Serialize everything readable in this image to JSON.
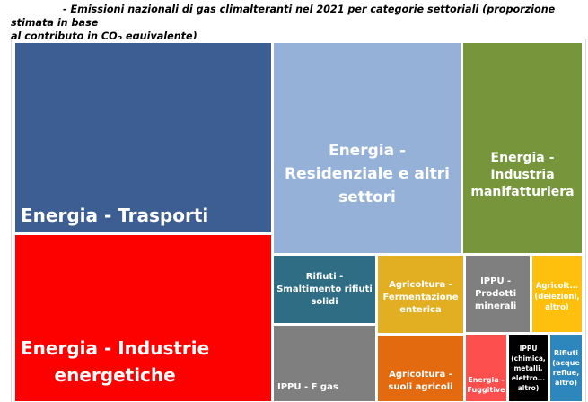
{
  "caption": {
    "line1": "- Emissioni nazionali di gas climalteranti nel 2021 per categorie settoriali (proporzione stimata in base",
    "line2a": "al contributo in CO",
    "line2_sub": "2",
    "line2b": " equivalente)"
  },
  "chart_data": {
    "type": "treemap",
    "title": "",
    "tiles": [
      {
        "id": "trasporti",
        "label": "Energia - Trasporti",
        "color": "#3d5e93"
      },
      {
        "id": "industrie_energetiche",
        "label": "Energia - Industrie\nenergetiche",
        "color": "#fd0000"
      },
      {
        "id": "residenziale",
        "label": "Energia -\nResidenziale e altri\nsettori",
        "color": "#96b1d7"
      },
      {
        "id": "manifatturiera",
        "label": "Energia -\nIndustria\nmanifatturiera",
        "color": "#77963b"
      },
      {
        "id": "rifiuti_smaltimento",
        "label": "Rifiuti -\nSmaltimento rifiuti\nsolidi",
        "color": "#2f6d84"
      },
      {
        "id": "fermentazione",
        "label": "Agricoltura -\nFermentazione\nenterica",
        "color": "#e1af21"
      },
      {
        "id": "prodotti_minerali",
        "label": "IPPU -\nProdotti\nminerali",
        "color": "#7f7f7f"
      },
      {
        "id": "deiezioni",
        "label": "Agricolt...\n(deiezioni,\naltro)",
        "color": "#ffc00d"
      },
      {
        "id": "f_gas",
        "label": "IPPU - F gas",
        "color": "#7f7f7f"
      },
      {
        "id": "suoli_agricoli",
        "label": "Agricoltura -\nsuoli agricoli",
        "color": "#e46a10"
      },
      {
        "id": "fuggitive",
        "label": "Energia -\nFuggitive",
        "color": "#fe4f4f"
      },
      {
        "id": "chimica",
        "label": "IPPU\n(chimica,\nmetalli,\nelettro...\naltro)",
        "color": "#000000"
      },
      {
        "id": "rifiuti_acque",
        "label": "Rifiuti\n(acque\nreflue,\naltro)",
        "color": "#2d87bd"
      }
    ]
  }
}
